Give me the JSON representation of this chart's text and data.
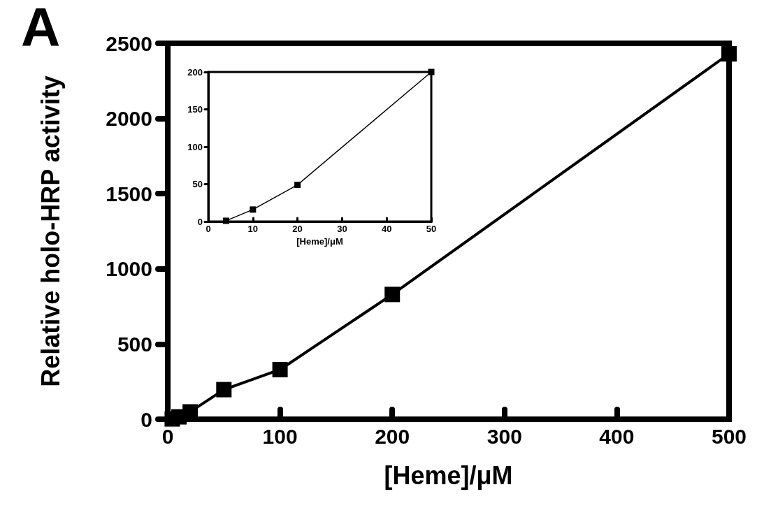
{
  "chart_data": [
    {
      "type": "line",
      "xlabel": "[Heme]/μM",
      "ylabel": "Relative holo-HRP activity",
      "annotations": [
        "A"
      ],
      "marker": "square",
      "line_style": "solid",
      "x": [
        4,
        10,
        20,
        50,
        100,
        200,
        500
      ],
      "series": [
        {
          "color": "#000000",
          "values": [
            2,
            16,
            49,
            197,
            330,
            830,
            2430
          ]
        }
      ],
      "xlim": [
        0,
        500
      ],
      "xticks": [
        0,
        100,
        200,
        300,
        400,
        500
      ],
      "ylim": [
        0,
        2500
      ],
      "yticks": [
        0,
        500,
        1000,
        1500,
        2000,
        2500
      ]
    },
    {
      "type": "line",
      "xlabel": "[Heme]/μM",
      "marker": "square",
      "line_style": "solid",
      "x": [
        4,
        10,
        20,
        50
      ],
      "series": [
        {
          "color": "#000000",
          "values": [
            1,
            16,
            49,
            200
          ]
        }
      ],
      "xlim": [
        0,
        50
      ],
      "xticks": [
        0,
        10,
        20,
        30,
        40,
        50
      ],
      "ylim": [
        0,
        200
      ],
      "yticks": [
        0,
        50,
        100,
        150,
        200
      ]
    }
  ]
}
